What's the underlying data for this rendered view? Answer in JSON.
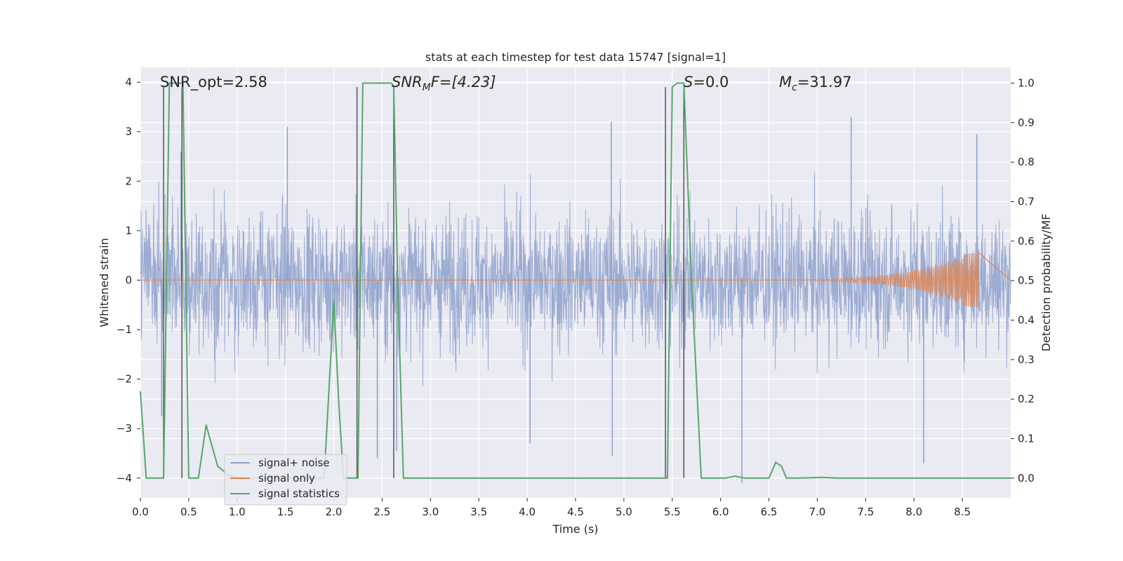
{
  "chart_data": {
    "type": "line",
    "title": "stats at each timestep for test data 15747 [signal=1]",
    "xlabel": "Time (s)",
    "ylabel": "Whitened strain",
    "ylabel_right": "Detection probability/MF",
    "xlim": [
      0.0,
      9.0
    ],
    "ylim": [
      -4.4,
      4.3
    ],
    "ylim_right": [
      -0.05,
      1.04
    ],
    "x_ticks": [
      0.0,
      0.5,
      1.0,
      1.5,
      2.0,
      2.5,
      3.0,
      3.5,
      4.0,
      4.5,
      5.0,
      5.5,
      6.0,
      6.5,
      7.0,
      7.5,
      8.0,
      8.5
    ],
    "x_tick_labels": [
      "0.0",
      "0.5",
      "1.0",
      "1.5",
      "2.0",
      "2.5",
      "3.0",
      "3.5",
      "4.0",
      "4.5",
      "5.0",
      "5.5",
      "6.0",
      "6.5",
      "7.0",
      "7.5",
      "8.0",
      "8.5"
    ],
    "y_ticks": [
      4,
      3,
      2,
      1,
      0,
      -1,
      -2,
      -3,
      -4
    ],
    "y_tick_labels": [
      "4",
      "3",
      "2",
      "1",
      "0",
      "−1",
      "−2",
      "−3",
      "−4"
    ],
    "y2_ticks": [
      1.0,
      0.9,
      0.8,
      0.7,
      0.6,
      0.5,
      0.4,
      0.3,
      0.2,
      0.1,
      0.0
    ],
    "y2_tick_labels": [
      "1.0",
      "0.9",
      "0.8",
      "0.7",
      "0.6",
      "0.5",
      "0.4",
      "0.3",
      "0.2",
      "0.1",
      "0.0"
    ],
    "grid": true,
    "annotations": {
      "snr_opt": "SNR_opt=2.58",
      "snr_mf_sym": "SNR",
      "snr_mf_sub": "M",
      "snr_mf_rest": "F=[4.23]",
      "s_sym": "S",
      "s_rest": "=0.0",
      "mc_sym": "M",
      "mc_sub": "c",
      "mc_rest": "=31.97"
    },
    "legend": {
      "placement": "lower-left",
      "entries": [
        "signal+ noise",
        "signal only",
        "signal statistics"
      ]
    },
    "colors": {
      "noise": "#8da0cb",
      "signal": "#dd8452",
      "stats": "#55a868",
      "markers": "#555555",
      "plot_bg": "#eaeaf2",
      "grid": "#ffffff"
    },
    "series": [
      {
        "name": "signal+ noise",
        "description_level": "dense noise approx. +/-1.5 with spikes up to about +/-3.5",
        "typical_amplitude": 1.5,
        "spikes": [
          {
            "x": 0.22,
            "y": -2.75
          },
          {
            "x": 0.42,
            "y": 2.6
          },
          {
            "x": 1.52,
            "y": 3.1
          },
          {
            "x": 2.45,
            "y": -3.6
          },
          {
            "x": 2.65,
            "y": -3.45
          },
          {
            "x": 4.03,
            "y": -3.3
          },
          {
            "x": 4.87,
            "y": 3.2
          },
          {
            "x": 4.88,
            "y": -3.55
          },
          {
            "x": 5.62,
            "y": -3.8
          },
          {
            "x": 6.22,
            "y": -4.1
          },
          {
            "x": 7.35,
            "y": 3.3
          },
          {
            "x": 8.1,
            "y": -3.7
          },
          {
            "x": 8.65,
            "y": 2.95
          }
        ]
      },
      {
        "name": "signal only",
        "description_level": "near zero, chirp growing after 6.0 s, peak about +/-0.6 near 8.65 s",
        "chirp_start": 6.0,
        "chirp_peak_time": 8.65,
        "chirp_peak_amplitude": 0.62
      },
      {
        "name": "signal statistics",
        "axis": "right",
        "x": [
          0.0,
          0.06,
          0.24,
          0.3,
          0.4,
          0.44,
          0.5,
          0.6,
          0.68,
          0.73,
          0.8,
          0.9,
          1.0,
          1.4,
          1.9,
          2.0,
          2.05,
          2.1,
          2.2,
          2.25,
          2.3,
          2.35,
          2.6,
          2.62,
          2.66,
          2.72,
          3.0,
          4.0,
          5.0,
          5.45,
          5.5,
          5.55,
          5.62,
          5.7,
          5.8,
          5.95,
          6.05,
          6.15,
          6.25,
          6.5,
          6.57,
          6.63,
          6.68,
          6.8,
          7.05,
          7.2,
          8.0,
          9.0
        ],
        "y": [
          0.22,
          0.0,
          0.0,
          1.0,
          1.0,
          1.0,
          0.0,
          0.0,
          0.135,
          0.09,
          0.03,
          0.01,
          0.0,
          0.0,
          0.0,
          0.45,
          0.2,
          0.0,
          0.0,
          0.0,
          1.0,
          1.0,
          1.0,
          0.99,
          0.5,
          0.0,
          0.0,
          0.0,
          0.0,
          0.0,
          0.99,
          1.0,
          1.0,
          0.5,
          0.0,
          0.0,
          0.0,
          0.005,
          0.0,
          0.0,
          0.04,
          0.03,
          0.0,
          0.0,
          0.002,
          0.0,
          0.0,
          0.0
        ]
      }
    ],
    "detection_markers": [
      {
        "start": 0.24,
        "end": 0.43
      },
      {
        "start": 2.24,
        "end": 2.62
      },
      {
        "start": 5.43,
        "end": 5.62
      }
    ],
    "detection_marker_range": [
      -4,
      3.9
    ]
  }
}
